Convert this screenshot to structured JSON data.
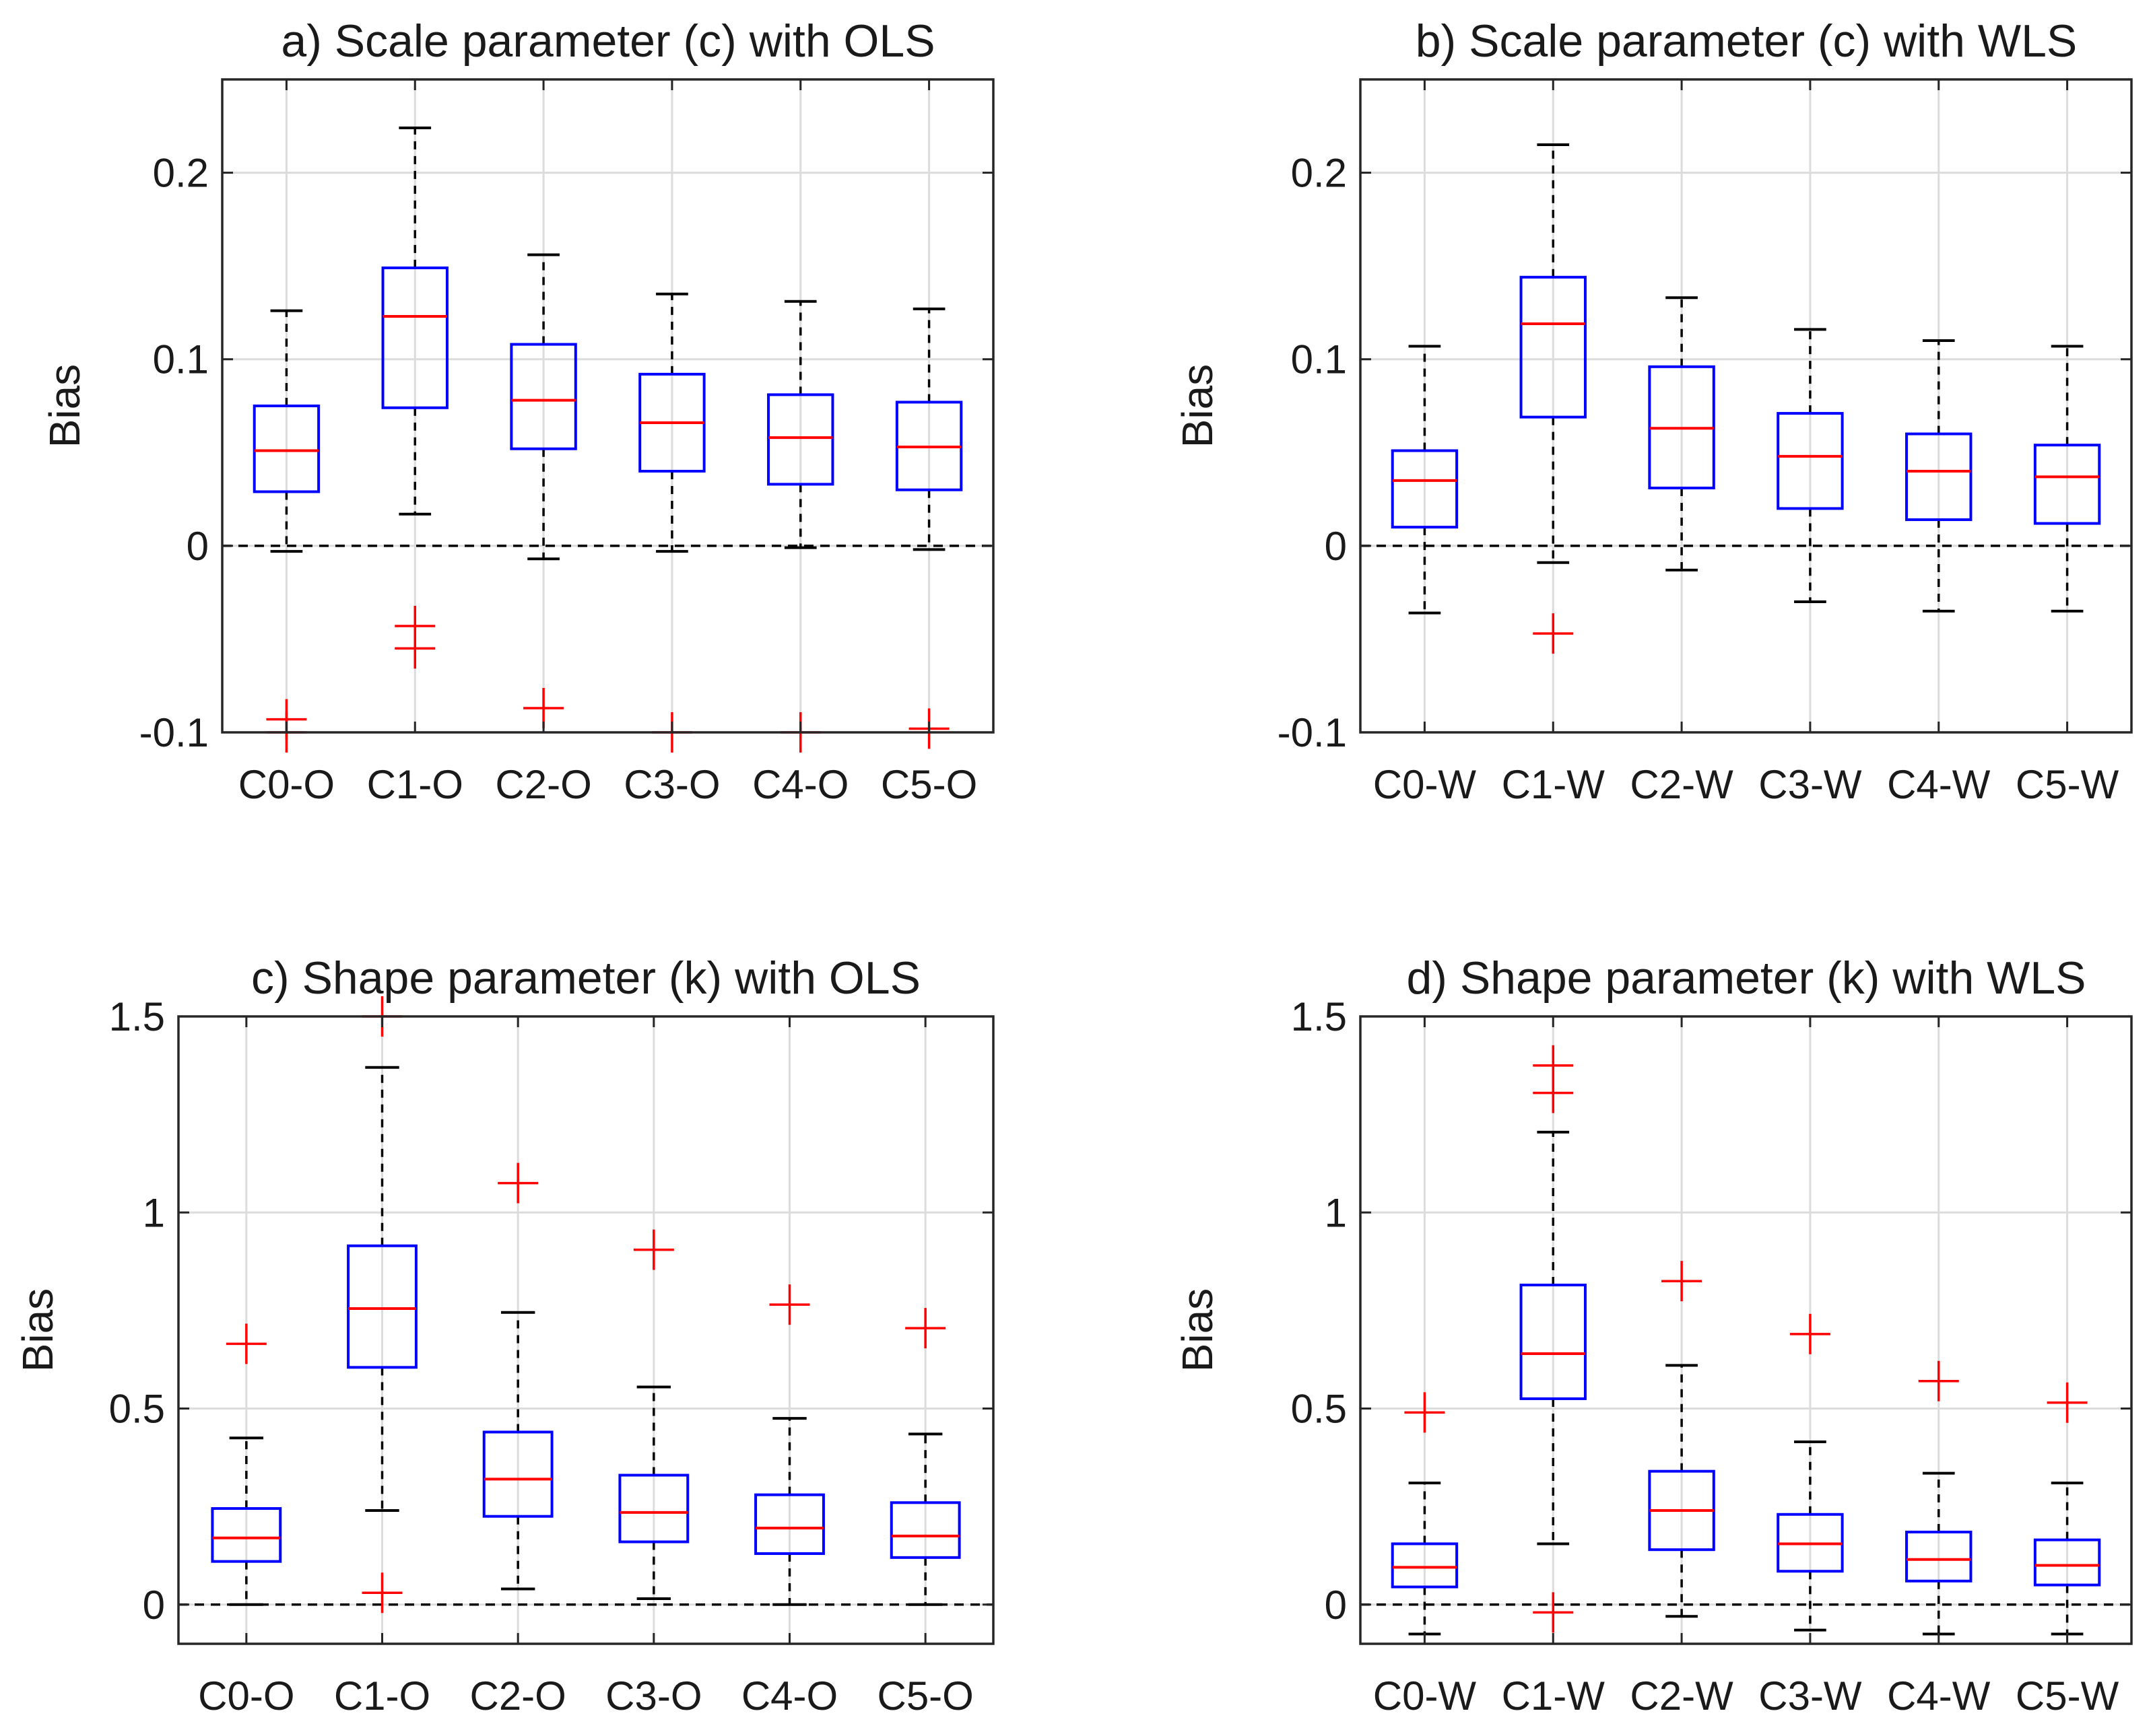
{
  "figure": {
    "background": "#ffffff",
    "box_color": "#0000ff",
    "median_color": "#ff0000",
    "outlier_color": "#ff0000",
    "whisker_color": "#000000",
    "grid_color": "#dcdcdc"
  },
  "chart_data": [
    {
      "type": "boxplot",
      "title": "a) Scale parameter (c) with OLS",
      "ylabel": "Bias",
      "xlabel": "",
      "ylim": [
        -0.1,
        0.25
      ],
      "yticks": [
        -0.1,
        0,
        0.1,
        0.2
      ],
      "ytick_labels": [
        "-0.1",
        "0",
        "0.1",
        "0.2"
      ],
      "reference_line": 0,
      "grid": true,
      "categories": [
        "C0-O",
        "C1-O",
        "C2-O",
        "C3-O",
        "C4-O",
        "C5-O"
      ],
      "boxes": [
        {
          "whisker_low": -0.003,
          "q1": 0.029,
          "median": 0.051,
          "q3": 0.075,
          "whisker_high": 0.126,
          "outliers": [
            -0.093,
            -0.1
          ]
        },
        {
          "whisker_low": 0.017,
          "q1": 0.074,
          "median": 0.123,
          "q3": 0.149,
          "whisker_high": 0.224,
          "outliers": [
            -0.043,
            -0.055
          ]
        },
        {
          "whisker_low": -0.007,
          "q1": 0.052,
          "median": 0.078,
          "q3": 0.108,
          "whisker_high": 0.156,
          "outliers": [
            -0.087
          ]
        },
        {
          "whisker_low": -0.003,
          "q1": 0.04,
          "median": 0.066,
          "q3": 0.092,
          "whisker_high": 0.135,
          "outliers": [
            -0.1
          ]
        },
        {
          "whisker_low": -0.001,
          "q1": 0.033,
          "median": 0.058,
          "q3": 0.081,
          "whisker_high": 0.131,
          "outliers": [
            -0.1
          ]
        },
        {
          "whisker_low": -0.002,
          "q1": 0.03,
          "median": 0.053,
          "q3": 0.077,
          "whisker_high": 0.127,
          "outliers": [
            -0.098
          ]
        }
      ]
    },
    {
      "type": "boxplot",
      "title": "b) Scale parameter (c) with WLS",
      "ylabel": "Bias",
      "xlabel": "",
      "ylim": [
        -0.1,
        0.25
      ],
      "yticks": [
        -0.1,
        0,
        0.1,
        0.2
      ],
      "ytick_labels": [
        "-0.1",
        "0",
        "0.1",
        "0.2"
      ],
      "reference_line": 0,
      "grid": true,
      "categories": [
        "C0-W",
        "C1-W",
        "C2-W",
        "C3-W",
        "C4-W",
        "C5-W"
      ],
      "boxes": [
        {
          "whisker_low": -0.036,
          "q1": 0.01,
          "median": 0.035,
          "q3": 0.051,
          "whisker_high": 0.107,
          "outliers": []
        },
        {
          "whisker_low": -0.009,
          "q1": 0.069,
          "median": 0.119,
          "q3": 0.144,
          "whisker_high": 0.215,
          "outliers": [
            -0.047
          ]
        },
        {
          "whisker_low": -0.013,
          "q1": 0.031,
          "median": 0.063,
          "q3": 0.096,
          "whisker_high": 0.133,
          "outliers": []
        },
        {
          "whisker_low": -0.03,
          "q1": 0.02,
          "median": 0.048,
          "q3": 0.071,
          "whisker_high": 0.116,
          "outliers": []
        },
        {
          "whisker_low": -0.035,
          "q1": 0.014,
          "median": 0.04,
          "q3": 0.06,
          "whisker_high": 0.11,
          "outliers": []
        },
        {
          "whisker_low": -0.035,
          "q1": 0.012,
          "median": 0.037,
          "q3": 0.054,
          "whisker_high": 0.107,
          "outliers": []
        }
      ]
    },
    {
      "type": "boxplot",
      "title": "c) Shape parameter (k) with OLS",
      "ylabel": "Bias",
      "xlabel": "",
      "ylim": [
        -0.1,
        1.5
      ],
      "yticks": [
        0,
        0.5,
        1,
        1.5
      ],
      "ytick_labels": [
        "0",
        "0.5",
        "1",
        "1.5"
      ],
      "reference_line": 0,
      "grid": true,
      "categories": [
        "C0-O",
        "C1-O",
        "C2-O",
        "C3-O",
        "C4-O",
        "C5-O"
      ],
      "boxes": [
        {
          "whisker_low": 0.0,
          "q1": 0.11,
          "median": 0.17,
          "q3": 0.245,
          "whisker_high": 0.425,
          "outliers": [
            0.665
          ]
        },
        {
          "whisker_low": 0.24,
          "q1": 0.605,
          "median": 0.755,
          "q3": 0.915,
          "whisker_high": 1.37,
          "outliers": [
            1.5,
            0.03
          ]
        },
        {
          "whisker_low": 0.04,
          "q1": 0.225,
          "median": 0.32,
          "q3": 0.44,
          "whisker_high": 0.745,
          "outliers": [
            1.075
          ]
        },
        {
          "whisker_low": 0.015,
          "q1": 0.16,
          "median": 0.235,
          "q3": 0.33,
          "whisker_high": 0.555,
          "outliers": [
            0.905
          ]
        },
        {
          "whisker_low": 0.0,
          "q1": 0.13,
          "median": 0.195,
          "q3": 0.28,
          "whisker_high": 0.475,
          "outliers": [
            0.765
          ]
        },
        {
          "whisker_low": 0.0,
          "q1": 0.12,
          "median": 0.175,
          "q3": 0.26,
          "whisker_high": 0.435,
          "outliers": [
            0.705
          ]
        }
      ]
    },
    {
      "type": "boxplot",
      "title": "d) Shape parameter (k) with WLS",
      "ylabel": "Bias",
      "xlabel": "",
      "ylim": [
        -0.1,
        1.5
      ],
      "yticks": [
        0,
        0.5,
        1,
        1.5
      ],
      "ytick_labels": [
        "0",
        "0.5",
        "1",
        "1.5"
      ],
      "reference_line": 0,
      "grid": true,
      "categories": [
        "C0-W",
        "C1-W",
        "C2-W",
        "C3-W",
        "C4-W",
        "C5-W"
      ],
      "boxes": [
        {
          "whisker_low": -0.075,
          "q1": 0.045,
          "median": 0.095,
          "q3": 0.155,
          "whisker_high": 0.31,
          "outliers": [
            0.49
          ]
        },
        {
          "whisker_low": 0.155,
          "q1": 0.525,
          "median": 0.64,
          "q3": 0.815,
          "whisker_high": 1.205,
          "outliers": [
            1.375,
            1.305,
            -0.02
          ]
        },
        {
          "whisker_low": -0.03,
          "q1": 0.14,
          "median": 0.24,
          "q3": 0.34,
          "whisker_high": 0.61,
          "outliers": [
            0.825
          ]
        },
        {
          "whisker_low": -0.065,
          "q1": 0.085,
          "median": 0.155,
          "q3": 0.23,
          "whisker_high": 0.415,
          "outliers": [
            0.69
          ]
        },
        {
          "whisker_low": -0.075,
          "q1": 0.06,
          "median": 0.115,
          "q3": 0.185,
          "whisker_high": 0.335,
          "outliers": [
            0.57
          ]
        },
        {
          "whisker_low": -0.075,
          "q1": 0.05,
          "median": 0.1,
          "q3": 0.165,
          "whisker_high": 0.31,
          "outliers": [
            0.515
          ]
        }
      ]
    }
  ]
}
